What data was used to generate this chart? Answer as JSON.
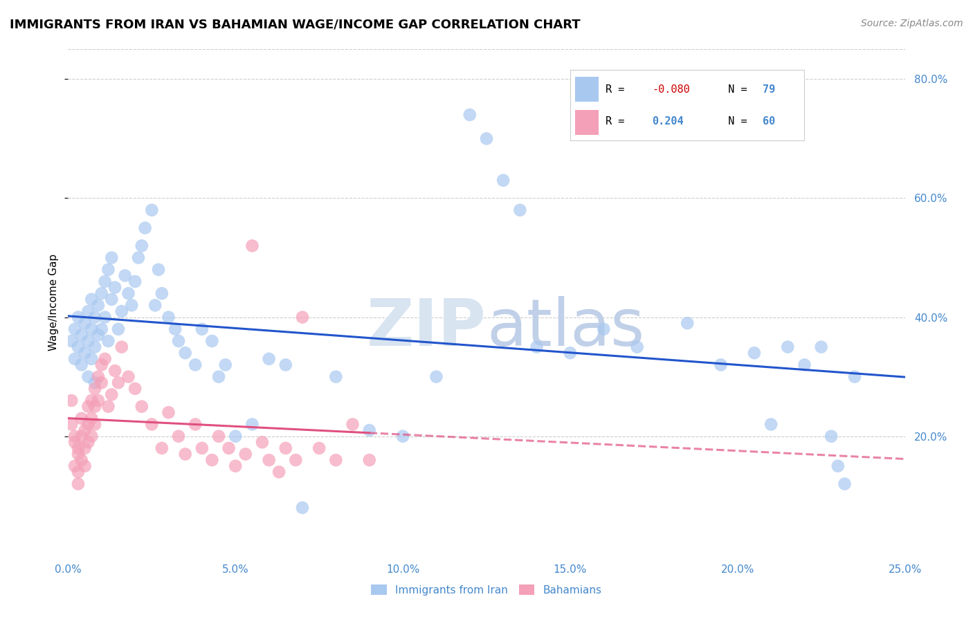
{
  "title": "IMMIGRANTS FROM IRAN VS BAHAMIAN WAGE/INCOME GAP CORRELATION CHART",
  "source": "Source: ZipAtlas.com",
  "ylabel": "Wage/Income Gap",
  "xlim": [
    0.0,
    0.25
  ],
  "ylim": [
    0.0,
    0.85
  ],
  "xticks": [
    0.0,
    0.05,
    0.1,
    0.15,
    0.2,
    0.25
  ],
  "xticklabels": [
    "0.0%",
    "5.0%",
    "10.0%",
    "15.0%",
    "20.0%",
    "25.0%"
  ],
  "yticks_right": [
    0.2,
    0.4,
    0.6,
    0.8
  ],
  "yticklabels_right": [
    "20.0%",
    "40.0%",
    "60.0%",
    "80.0%"
  ],
  "color_blue": "#A8C8F0",
  "color_pink": "#F4A0B8",
  "color_blue_line": "#2255CC",
  "color_pink_line": "#E05080",
  "color_tick": "#4488CC",
  "watermark_color": "#D8E4F0",
  "iran_x": [
    0.001,
    0.002,
    0.002,
    0.003,
    0.003,
    0.004,
    0.004,
    0.005,
    0.005,
    0.006,
    0.006,
    0.006,
    0.007,
    0.007,
    0.007,
    0.008,
    0.008,
    0.008,
    0.009,
    0.009,
    0.01,
    0.01,
    0.011,
    0.011,
    0.012,
    0.012,
    0.013,
    0.013,
    0.014,
    0.015,
    0.016,
    0.017,
    0.018,
    0.019,
    0.02,
    0.021,
    0.022,
    0.023,
    0.025,
    0.026,
    0.027,
    0.028,
    0.03,
    0.032,
    0.033,
    0.035,
    0.038,
    0.04,
    0.043,
    0.045,
    0.047,
    0.05,
    0.055,
    0.06,
    0.065,
    0.07,
    0.08,
    0.09,
    0.1,
    0.11,
    0.12,
    0.125,
    0.13,
    0.135,
    0.14,
    0.15,
    0.16,
    0.17,
    0.185,
    0.195,
    0.205,
    0.21,
    0.215,
    0.22,
    0.225,
    0.228,
    0.23,
    0.232,
    0.235
  ],
  "iran_y": [
    0.36,
    0.38,
    0.33,
    0.4,
    0.35,
    0.37,
    0.32,
    0.39,
    0.34,
    0.41,
    0.36,
    0.3,
    0.43,
    0.38,
    0.33,
    0.4,
    0.35,
    0.29,
    0.42,
    0.37,
    0.44,
    0.38,
    0.46,
    0.4,
    0.48,
    0.36,
    0.5,
    0.43,
    0.45,
    0.38,
    0.41,
    0.47,
    0.44,
    0.42,
    0.46,
    0.5,
    0.52,
    0.55,
    0.58,
    0.42,
    0.48,
    0.44,
    0.4,
    0.38,
    0.36,
    0.34,
    0.32,
    0.38,
    0.36,
    0.3,
    0.32,
    0.2,
    0.22,
    0.33,
    0.32,
    0.08,
    0.3,
    0.21,
    0.2,
    0.3,
    0.74,
    0.7,
    0.63,
    0.58,
    0.35,
    0.34,
    0.38,
    0.35,
    0.39,
    0.32,
    0.34,
    0.22,
    0.35,
    0.32,
    0.35,
    0.2,
    0.15,
    0.12,
    0.3
  ],
  "bahamas_x": [
    0.001,
    0.001,
    0.002,
    0.002,
    0.002,
    0.003,
    0.003,
    0.003,
    0.003,
    0.004,
    0.004,
    0.004,
    0.005,
    0.005,
    0.005,
    0.006,
    0.006,
    0.006,
    0.007,
    0.007,
    0.007,
    0.008,
    0.008,
    0.008,
    0.009,
    0.009,
    0.01,
    0.01,
    0.011,
    0.012,
    0.013,
    0.014,
    0.015,
    0.016,
    0.018,
    0.02,
    0.022,
    0.025,
    0.028,
    0.03,
    0.033,
    0.035,
    0.038,
    0.04,
    0.043,
    0.045,
    0.048,
    0.05,
    0.053,
    0.055,
    0.058,
    0.06,
    0.063,
    0.065,
    0.068,
    0.07,
    0.075,
    0.08,
    0.085,
    0.09
  ],
  "bahamas_y": [
    0.26,
    0.22,
    0.2,
    0.19,
    0.15,
    0.18,
    0.17,
    0.14,
    0.12,
    0.2,
    0.23,
    0.16,
    0.21,
    0.18,
    0.15,
    0.25,
    0.22,
    0.19,
    0.26,
    0.23,
    0.2,
    0.28,
    0.25,
    0.22,
    0.3,
    0.26,
    0.32,
    0.29,
    0.33,
    0.25,
    0.27,
    0.31,
    0.29,
    0.35,
    0.3,
    0.28,
    0.25,
    0.22,
    0.18,
    0.24,
    0.2,
    0.17,
    0.22,
    0.18,
    0.16,
    0.2,
    0.18,
    0.15,
    0.17,
    0.52,
    0.19,
    0.16,
    0.14,
    0.18,
    0.16,
    0.4,
    0.18,
    0.16,
    0.22,
    0.16
  ]
}
